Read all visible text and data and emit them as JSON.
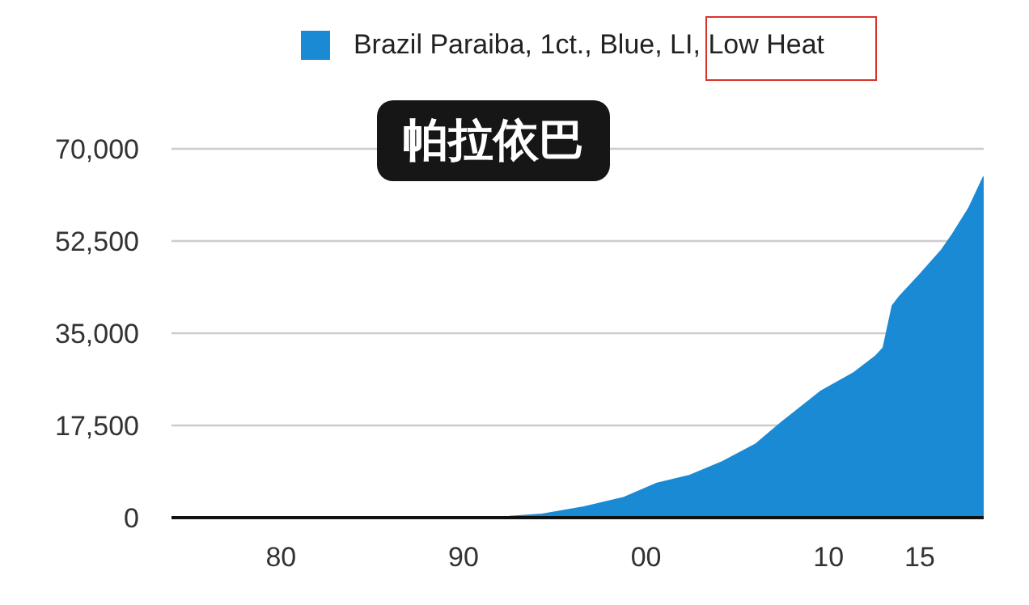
{
  "chart_data": {
    "type": "area",
    "legend": "top",
    "grid": "y",
    "annotations": [
      "帕拉依巴"
    ],
    "x": [
      1974,
      1990,
      1992.5,
      1994.3,
      1996.6,
      1998.8,
      2000.6,
      2002.4,
      2004.2,
      2006,
      2007.4,
      2009.6,
      2011.4,
      2012.6,
      2013,
      2013.5,
      2013.9,
      2015,
      2016.2,
      2016.8,
      2017.7,
      2018.5
    ],
    "series": [
      {
        "name": "Brazil Paraiba, 1ct., Blue, LI, Low Heat",
        "color": "#1a8ad4",
        "values": [
          0,
          0,
          200,
          600,
          2000,
          3800,
          6500,
          8000,
          10600,
          13900,
          18000,
          24000,
          27500,
          30700,
          32200,
          40200,
          42000,
          46100,
          50800,
          53800,
          58800,
          64700
        ]
      }
    ],
    "xlim": [
      1974,
      2018.5
    ],
    "xticks": [
      {
        "value": 1980,
        "label": "80"
      },
      {
        "value": 1990,
        "label": "90"
      },
      {
        "value": 2000,
        "label": "00"
      },
      {
        "value": 2010,
        "label": "10"
      },
      {
        "value": 2015,
        "label": "15"
      }
    ],
    "ylim": [
      0,
      70000
    ],
    "yticks": [
      0,
      {
        "value": 17500,
        "label": "17,500"
      },
      {
        "value": 35000,
        "label": "35,000"
      },
      {
        "value": 52500,
        "label": "52,500"
      },
      {
        "value": 70000,
        "label": "70,000"
      }
    ]
  }
}
